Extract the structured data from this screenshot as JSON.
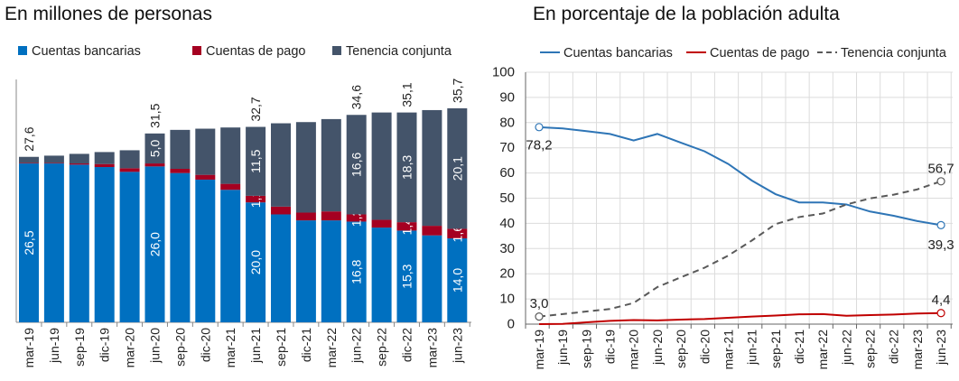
{
  "chart_data": [
    {
      "type": "bar",
      "stacked": true,
      "title": "En millones de personas",
      "categories": [
        "mar-19",
        "jun-19",
        "sep-19",
        "dic-19",
        "mar-20",
        "jun-20",
        "sep-20",
        "dic-20",
        "mar-21",
        "jun-21",
        "sep-21",
        "dic-21",
        "mar-22",
        "jun-22",
        "sep-22",
        "dic-22",
        "mar-23",
        "jun-23"
      ],
      "series": [
        {
          "name": "Cuentas bancarias",
          "color": "#0070C0",
          "values": [
            26.5,
            26.5,
            26.3,
            25.9,
            25.1,
            26.0,
            24.9,
            23.8,
            22.1,
            20.0,
            18.0,
            17.0,
            17.0,
            16.8,
            15.8,
            15.3,
            14.5,
            14.0
          ],
          "labels": [
            "26,5",
            null,
            null,
            null,
            null,
            "26,0",
            null,
            null,
            null,
            "20,0",
            null,
            null,
            null,
            "16,8",
            null,
            "15,3",
            null,
            "14,0"
          ]
        },
        {
          "name": "Cuentas de pago",
          "color": "#A50021",
          "values": [
            0.1,
            0.1,
            0.2,
            0.5,
            0.6,
            0.5,
            0.7,
            0.8,
            1.0,
            1.1,
            1.3,
            1.3,
            1.5,
            1.2,
            1.3,
            1.4,
            1.6,
            1.6
          ],
          "labels": [
            null,
            null,
            null,
            null,
            null,
            null,
            null,
            null,
            null,
            "1,1",
            null,
            null,
            null,
            "1,2",
            null,
            "1,4",
            null,
            "1,6"
          ]
        },
        {
          "name": "Tenencia conjunta",
          "color": "#44546A",
          "values": [
            1.0,
            1.2,
            1.6,
            2.0,
            3.0,
            5.0,
            6.5,
            7.7,
            9.4,
            11.5,
            13.9,
            15.1,
            15.4,
            16.6,
            17.9,
            18.3,
            19.3,
            20.1
          ],
          "labels": [
            null,
            null,
            null,
            null,
            null,
            "5,0",
            null,
            null,
            null,
            "11,5",
            null,
            null,
            null,
            "16,6",
            null,
            "18,3",
            null,
            "20,1"
          ]
        }
      ],
      "total_labels": [
        "27,6",
        null,
        null,
        null,
        null,
        "31,5",
        null,
        null,
        null,
        "32,7",
        null,
        null,
        null,
        "34,6",
        null,
        "35,1",
        null,
        "35,7"
      ],
      "ylim": [
        0,
        40
      ]
    },
    {
      "type": "line",
      "title": "En porcentaje de la población adulta",
      "categories": [
        "mar-19",
        "jun-19",
        "sep-19",
        "dic-19",
        "mar-20",
        "jun-20",
        "sep-20",
        "dic-20",
        "mar-21",
        "jun-21",
        "sep-21",
        "dic-21",
        "mar-22",
        "jun-22",
        "sep-22",
        "dic-22",
        "mar-23",
        "jun-23"
      ],
      "yticks": [
        "0",
        "10",
        "20",
        "30",
        "40",
        "50",
        "60",
        "70",
        "80",
        "90",
        "100"
      ],
      "ylim": [
        0,
        100
      ],
      "grid": true,
      "series": [
        {
          "name": "Cuentas bancarias",
          "color": "#2E75B6",
          "dash": false,
          "values": [
            78.2,
            77.7,
            76.6,
            75.5,
            72.9,
            75.5,
            72.0,
            68.6,
            63.6,
            57.0,
            51.6,
            48.3,
            48.3,
            47.5,
            44.7,
            43.0,
            40.9,
            39.3
          ],
          "first_label": "78,2",
          "last_label": "39,3"
        },
        {
          "name": "Cuentas de pago",
          "color": "#C00000",
          "dash": false,
          "values": [
            0.0,
            0.1,
            0.7,
            1.3,
            1.6,
            1.5,
            1.8,
            2.0,
            2.5,
            3.0,
            3.4,
            3.9,
            4.0,
            3.3,
            3.6,
            3.8,
            4.2,
            4.4
          ],
          "first_label": null,
          "last_label": "4,4"
        },
        {
          "name": "Tenencia conjunta",
          "color": "#595959",
          "dash": true,
          "values": [
            3.0,
            4.0,
            5.0,
            6.0,
            8.4,
            14.7,
            18.6,
            22.4,
            27.2,
            33.2,
            39.7,
            42.5,
            43.9,
            47.5,
            49.9,
            51.4,
            53.5,
            56.7
          ],
          "first_label": "3,0",
          "last_label": "56,7"
        }
      ]
    }
  ]
}
